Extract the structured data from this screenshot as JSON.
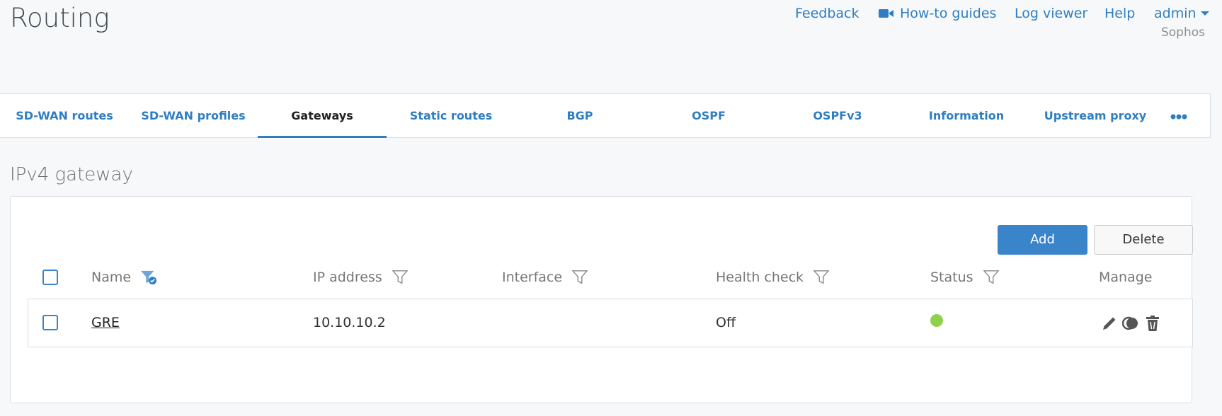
{
  "header": {
    "title": "Routing",
    "links": {
      "feedback": "Feedback",
      "howto": "How-to guides",
      "logviewer": "Log viewer",
      "help": "Help",
      "user": "admin"
    },
    "org": "Sophos"
  },
  "tabs": [
    {
      "label": "SD-WAN routes"
    },
    {
      "label": "SD-WAN profiles"
    },
    {
      "label": "Gateways",
      "active": true
    },
    {
      "label": "Static routes"
    },
    {
      "label": "BGP"
    },
    {
      "label": "OSPF"
    },
    {
      "label": "OSPFv3"
    },
    {
      "label": "Information"
    },
    {
      "label": "Upstream proxy"
    }
  ],
  "section": {
    "title": "IPv4 gateway"
  },
  "toolbar": {
    "add": "Add",
    "delete": "Delete"
  },
  "table": {
    "columns": {
      "name": "Name",
      "ip": "IP address",
      "interface": "Interface",
      "health": "Health check",
      "status": "Status",
      "manage": "Manage"
    },
    "rows": [
      {
        "name": "GRE",
        "ip": "10.10.10.2",
        "interface": "",
        "health": "Off",
        "status": "active",
        "status_color": "#8fd14f"
      }
    ]
  },
  "colors": {
    "accent": "#2f7ec2"
  }
}
